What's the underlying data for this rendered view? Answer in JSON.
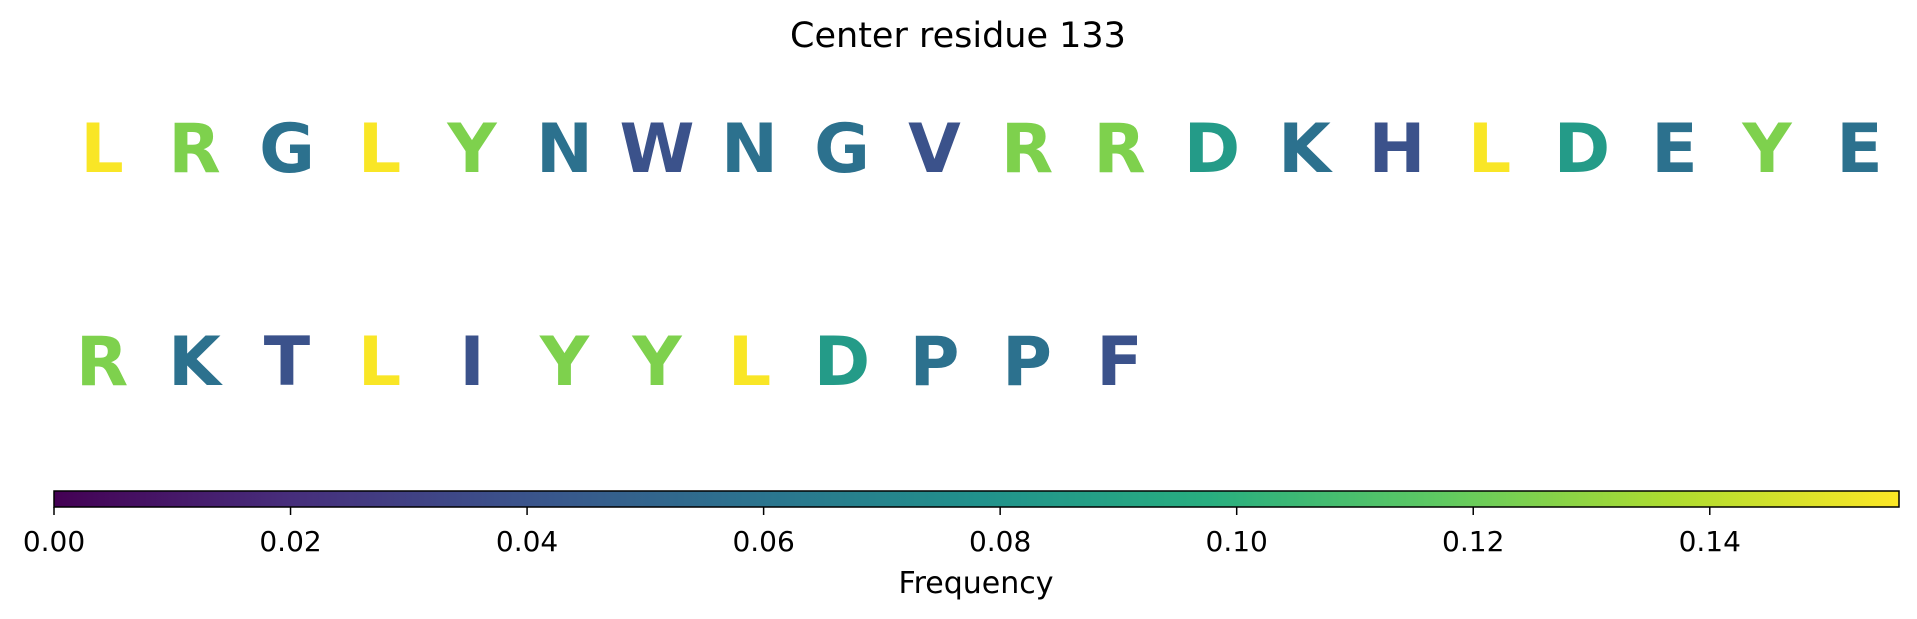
{
  "chart_data": {
    "type": "sequence-heat",
    "title": "Center residue 133",
    "rows": [
      [
        {
          "letter": "L",
          "frequency": 0.155
        },
        {
          "letter": "R",
          "frequency": 0.125
        },
        {
          "letter": "G",
          "frequency": 0.058
        },
        {
          "letter": "L",
          "frequency": 0.155
        },
        {
          "letter": "Y",
          "frequency": 0.125
        },
        {
          "letter": "N",
          "frequency": 0.058
        },
        {
          "letter": "W",
          "frequency": 0.039
        },
        {
          "letter": "N",
          "frequency": 0.058
        },
        {
          "letter": "G",
          "frequency": 0.058
        },
        {
          "letter": "V",
          "frequency": 0.039
        },
        {
          "letter": "R",
          "frequency": 0.125
        },
        {
          "letter": "R",
          "frequency": 0.125
        },
        {
          "letter": "D",
          "frequency": 0.085
        },
        {
          "letter": "K",
          "frequency": 0.058
        },
        {
          "letter": "H",
          "frequency": 0.039
        },
        {
          "letter": "L",
          "frequency": 0.155
        },
        {
          "letter": "D",
          "frequency": 0.085
        },
        {
          "letter": "E",
          "frequency": 0.058
        },
        {
          "letter": "Y",
          "frequency": 0.125
        },
        {
          "letter": "E",
          "frequency": 0.058
        }
      ],
      [
        {
          "letter": "R",
          "frequency": 0.125
        },
        {
          "letter": "K",
          "frequency": 0.058
        },
        {
          "letter": "T",
          "frequency": 0.039
        },
        {
          "letter": "L",
          "frequency": 0.155
        },
        {
          "letter": "I",
          "frequency": 0.039
        },
        {
          "letter": "Y",
          "frequency": 0.125
        },
        {
          "letter": "Y",
          "frequency": 0.125
        },
        {
          "letter": "L",
          "frequency": 0.155
        },
        {
          "letter": "D",
          "frequency": 0.085
        },
        {
          "letter": "P",
          "frequency": 0.058
        },
        {
          "letter": "P",
          "frequency": 0.058
        },
        {
          "letter": "F",
          "frequency": 0.039
        }
      ]
    ],
    "colorbar": {
      "label": "Frequency",
      "colormap": "viridis",
      "range": [
        0.0,
        0.156
      ],
      "ticks": [
        0.0,
        0.02,
        0.04,
        0.06,
        0.08,
        0.1,
        0.12,
        0.14
      ],
      "tick_labels": [
        "0.00",
        "0.02",
        "0.04",
        "0.06",
        "0.08",
        "0.10",
        "0.12",
        "0.14"
      ],
      "position": "bottom"
    }
  }
}
